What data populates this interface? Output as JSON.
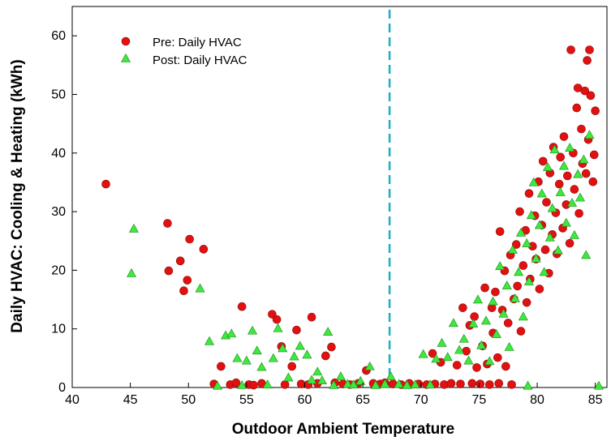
{
  "chart_data": {
    "type": "scatter",
    "xlabel": "Outdoor Ambient Temperature",
    "ylabel": "Daily HVAC: Cooling & Heating (kWh)",
    "xlim": [
      40,
      86
    ],
    "ylim": [
      0,
      65
    ],
    "xticks": [
      40,
      45,
      50,
      55,
      60,
      65,
      70,
      75,
      80,
      85
    ],
    "yticks": [
      0,
      10,
      20,
      30,
      40,
      50,
      60
    ],
    "legend_position": "top-left",
    "reference_line": {
      "x": 67.3,
      "style": "dashed",
      "color": "#1ab0c8"
    },
    "series": [
      {
        "name": "Pre: Daily HVAC",
        "marker": "circle",
        "color": "#e31010",
        "points": [
          [
            42.9,
            34.7
          ],
          [
            48.2,
            28.0
          ],
          [
            48.3,
            19.9
          ],
          [
            49.3,
            21.6
          ],
          [
            49.6,
            16.5
          ],
          [
            49.9,
            18.3
          ],
          [
            50.1,
            25.3
          ],
          [
            51.3,
            23.6
          ],
          [
            52.2,
            0.6
          ],
          [
            52.8,
            3.6
          ],
          [
            53.6,
            0.5
          ],
          [
            54.1,
            0.8
          ],
          [
            54.6,
            13.8
          ],
          [
            55.2,
            0.5
          ],
          [
            55.6,
            0.4
          ],
          [
            56.3,
            0.7
          ],
          [
            57.2,
            12.5
          ],
          [
            57.6,
            11.6
          ],
          [
            58.0,
            7.0
          ],
          [
            58.3,
            0.5
          ],
          [
            58.9,
            3.6
          ],
          [
            59.3,
            9.8
          ],
          [
            59.7,
            0.6
          ],
          [
            60.3,
            0.5
          ],
          [
            60.6,
            12.0
          ],
          [
            61.1,
            0.7
          ],
          [
            61.8,
            5.4
          ],
          [
            62.3,
            6.9
          ],
          [
            62.6,
            0.8
          ],
          [
            63.3,
            0.6
          ],
          [
            63.9,
            0.5
          ],
          [
            64.6,
            0.7
          ],
          [
            65.3,
            2.9
          ],
          [
            65.9,
            0.7
          ],
          [
            66.5,
            0.6
          ],
          [
            66.9,
            0.8
          ],
          [
            67.6,
            0.6
          ],
          [
            68.3,
            0.5
          ],
          [
            69.0,
            0.7
          ],
          [
            69.8,
            0.6
          ],
          [
            70.5,
            0.5
          ],
          [
            71.0,
            5.8
          ],
          [
            71.2,
            0.6
          ],
          [
            71.7,
            4.3
          ],
          [
            72.0,
            0.5
          ],
          [
            72.6,
            0.7
          ],
          [
            73.1,
            3.8
          ],
          [
            73.4,
            0.6
          ],
          [
            73.6,
            13.6
          ],
          [
            73.9,
            6.2
          ],
          [
            74.2,
            10.6
          ],
          [
            74.4,
            0.7
          ],
          [
            74.6,
            12.1
          ],
          [
            74.8,
            3.4
          ],
          [
            75.1,
            0.6
          ],
          [
            75.3,
            7.1
          ],
          [
            75.5,
            17.0
          ],
          [
            75.7,
            4.0
          ],
          [
            75.9,
            0.5
          ],
          [
            76.1,
            13.6
          ],
          [
            76.2,
            9.3
          ],
          [
            76.4,
            16.3
          ],
          [
            76.6,
            5.1
          ],
          [
            76.7,
            0.7
          ],
          [
            76.8,
            26.6
          ],
          [
            77.0,
            13.2
          ],
          [
            77.2,
            19.9
          ],
          [
            77.3,
            3.6
          ],
          [
            77.5,
            11.0
          ],
          [
            77.7,
            22.6
          ],
          [
            77.8,
            0.5
          ],
          [
            78.0,
            15.1
          ],
          [
            78.2,
            24.4
          ],
          [
            78.3,
            17.3
          ],
          [
            78.5,
            30.0
          ],
          [
            78.6,
            9.6
          ],
          [
            78.8,
            20.8
          ],
          [
            79.0,
            26.8
          ],
          [
            79.1,
            14.5
          ],
          [
            79.3,
            33.1
          ],
          [
            79.4,
            18.5
          ],
          [
            79.6,
            24.1
          ],
          [
            79.8,
            29.3
          ],
          [
            79.9,
            21.9
          ],
          [
            80.1,
            35.1
          ],
          [
            80.2,
            16.8
          ],
          [
            80.4,
            27.7
          ],
          [
            80.5,
            38.6
          ],
          [
            80.7,
            23.5
          ],
          [
            80.8,
            31.6
          ],
          [
            81.0,
            19.5
          ],
          [
            81.1,
            36.6
          ],
          [
            81.3,
            26.1
          ],
          [
            81.4,
            41.0
          ],
          [
            81.6,
            29.8
          ],
          [
            81.7,
            22.8
          ],
          [
            81.9,
            34.7
          ],
          [
            82.0,
            39.3
          ],
          [
            82.2,
            27.2
          ],
          [
            82.3,
            42.8
          ],
          [
            82.5,
            31.2
          ],
          [
            82.6,
            36.1
          ],
          [
            82.8,
            24.6
          ],
          [
            82.9,
            57.6
          ],
          [
            83.1,
            40.0
          ],
          [
            83.2,
            33.8
          ],
          [
            83.4,
            47.7
          ],
          [
            83.5,
            51.1
          ],
          [
            83.6,
            29.7
          ],
          [
            83.8,
            44.1
          ],
          [
            83.9,
            38.2
          ],
          [
            84.1,
            50.6
          ],
          [
            84.2,
            36.5
          ],
          [
            84.3,
            55.8
          ],
          [
            84.4,
            42.3
          ],
          [
            84.5,
            57.6
          ],
          [
            84.6,
            49.8
          ],
          [
            84.8,
            35.1
          ],
          [
            84.9,
            39.7
          ],
          [
            85.0,
            47.2
          ]
        ]
      },
      {
        "name": "Post: Daily HVAC",
        "marker": "triangle",
        "color": "#3ee83e",
        "points": [
          [
            45.3,
            27.1
          ],
          [
            45.1,
            19.5
          ],
          [
            51.0,
            16.9
          ],
          [
            51.8,
            7.9
          ],
          [
            52.5,
            0.3
          ],
          [
            53.2,
            8.9
          ],
          [
            53.7,
            9.2
          ],
          [
            54.2,
            5.0
          ],
          [
            54.6,
            0.4
          ],
          [
            55.0,
            4.6
          ],
          [
            55.5,
            9.7
          ],
          [
            55.9,
            6.3
          ],
          [
            56.3,
            3.5
          ],
          [
            56.8,
            0.5
          ],
          [
            57.3,
            5.0
          ],
          [
            57.7,
            10.1
          ],
          [
            58.1,
            6.7
          ],
          [
            58.6,
            1.7
          ],
          [
            59.1,
            5.3
          ],
          [
            59.6,
            7.1
          ],
          [
            60.2,
            5.6
          ],
          [
            60.6,
            1.3
          ],
          [
            61.1,
            2.7
          ],
          [
            61.5,
            1.2
          ],
          [
            62.0,
            9.5
          ],
          [
            62.5,
            0.4
          ],
          [
            63.1,
            1.9
          ],
          [
            63.7,
            0.6
          ],
          [
            64.2,
            0.5
          ],
          [
            64.8,
            1.1
          ],
          [
            65.6,
            3.6
          ],
          [
            66.1,
            0.4
          ],
          [
            66.9,
            0.6
          ],
          [
            67.4,
            1.9
          ],
          [
            68.1,
            0.6
          ],
          [
            68.8,
            0.4
          ],
          [
            69.5,
            0.5
          ],
          [
            70.2,
            5.7
          ],
          [
            70.8,
            0.5
          ],
          [
            71.3,
            4.9
          ],
          [
            71.8,
            7.6
          ],
          [
            72.3,
            5.2
          ],
          [
            72.8,
            11.0
          ],
          [
            73.3,
            6.4
          ],
          [
            73.7,
            8.3
          ],
          [
            74.1,
            4.6
          ],
          [
            74.5,
            10.9
          ],
          [
            74.9,
            15.0
          ],
          [
            75.2,
            7.2
          ],
          [
            75.6,
            11.4
          ],
          [
            75.9,
            4.5
          ],
          [
            76.2,
            14.7
          ],
          [
            76.5,
            9.1
          ],
          [
            76.8,
            20.7
          ],
          [
            77.1,
            12.6
          ],
          [
            77.4,
            17.4
          ],
          [
            77.6,
            6.9
          ],
          [
            77.9,
            23.5
          ],
          [
            78.1,
            15.2
          ],
          [
            78.4,
            19.7
          ],
          [
            78.6,
            26.4
          ],
          [
            78.8,
            12.1
          ],
          [
            79.1,
            24.6
          ],
          [
            79.3,
            18.1
          ],
          [
            79.5,
            29.4
          ],
          [
            79.7,
            35.0
          ],
          [
            79.9,
            22.0
          ],
          [
            80.2,
            27.7
          ],
          [
            80.4,
            33.1
          ],
          [
            80.6,
            19.7
          ],
          [
            80.9,
            37.6
          ],
          [
            81.1,
            25.6
          ],
          [
            81.3,
            30.6
          ],
          [
            81.5,
            40.6
          ],
          [
            81.8,
            23.4
          ],
          [
            82.0,
            33.3
          ],
          [
            82.3,
            37.8
          ],
          [
            82.5,
            28.1
          ],
          [
            82.8,
            40.9
          ],
          [
            83.0,
            31.5
          ],
          [
            83.2,
            26.0
          ],
          [
            83.5,
            36.4
          ],
          [
            83.7,
            32.4
          ],
          [
            84.0,
            38.9
          ],
          [
            84.2,
            22.6
          ],
          [
            84.5,
            43.1
          ],
          [
            79.2,
            0.3
          ],
          [
            85.3,
            0.3
          ]
        ]
      }
    ]
  }
}
